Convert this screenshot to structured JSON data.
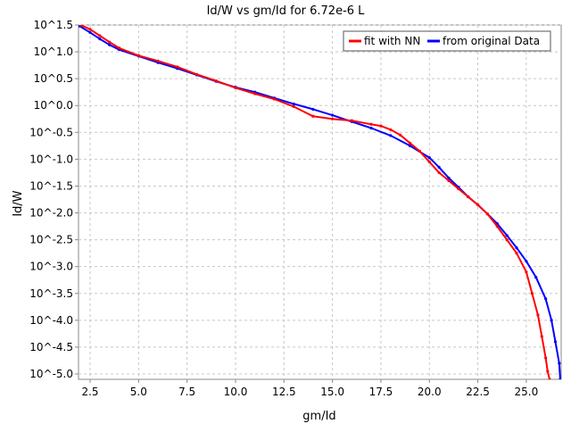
{
  "chart_data": {
    "type": "line",
    "title": "Id/W vs gm/Id for 6.72e-6 L",
    "xlabel": "gm/Id",
    "ylabel": "Id/W",
    "xlim": [
      1.9,
      26.8
    ],
    "ylim": [
      -5.1,
      1.5
    ],
    "y_scale": "log10 (exponent shown)",
    "grid": true,
    "legend_position": "top-right",
    "x_ticks": [
      2.5,
      5.0,
      7.5,
      10.0,
      12.5,
      15.0,
      17.5,
      20.0,
      22.5,
      25.0
    ],
    "x_tick_labels": [
      "2.5",
      "5.0",
      "7.5",
      "10.0",
      "12.5",
      "15.0",
      "17.5",
      "20.0",
      "22.5",
      "25.0"
    ],
    "y_ticks": [
      1.5,
      1.0,
      0.5,
      0.0,
      -0.5,
      -1.0,
      -1.5,
      -2.0,
      -2.5,
      -3.0,
      -3.5,
      -4.0,
      -4.5,
      -5.0
    ],
    "y_tick_labels": [
      "10^1.5",
      "10^1.0",
      "10^0.5",
      "10^0.0",
      "10^-0.5",
      "10^-1.0",
      "10^-1.5",
      "10^-2.0",
      "10^-2.5",
      "10^-3.0",
      "10^-3.5",
      "10^-4.0",
      "10^-4.5",
      "10^-5.0"
    ],
    "series": [
      {
        "name": "fit with NN",
        "color": "#ff0000",
        "x": [
          2.0,
          2.5,
          3.0,
          3.5,
          4.0,
          5.0,
          6.0,
          7.0,
          8.0,
          9.0,
          10.0,
          11.0,
          12.0,
          13.0,
          14.0,
          15.0,
          16.0,
          17.0,
          17.5,
          18.0,
          18.5,
          19.0,
          19.5,
          20.0,
          20.5,
          21.0,
          21.5,
          22.0,
          22.5,
          23.0,
          23.5,
          24.0,
          24.5,
          25.0,
          25.3,
          25.6,
          25.8,
          26.0,
          26.1,
          26.2
        ],
        "y": [
          1.5,
          1.42,
          1.3,
          1.18,
          1.07,
          0.93,
          0.83,
          0.72,
          0.58,
          0.46,
          0.33,
          0.22,
          0.12,
          -0.02,
          -0.2,
          -0.25,
          -0.28,
          -0.35,
          -0.38,
          -0.45,
          -0.55,
          -0.7,
          -0.85,
          -1.05,
          -1.25,
          -1.4,
          -1.55,
          -1.7,
          -1.85,
          -2.02,
          -2.25,
          -2.5,
          -2.75,
          -3.1,
          -3.5,
          -3.9,
          -4.3,
          -4.7,
          -4.95,
          -5.1
        ]
      },
      {
        "name": "from original Data",
        "color": "#0000ff",
        "x": [
          1.95,
          2.5,
          3.0,
          3.5,
          4.0,
          5.0,
          6.0,
          7.0,
          8.0,
          9.0,
          10.0,
          11.0,
          12.0,
          13.0,
          14.0,
          15.0,
          16.0,
          17.0,
          18.0,
          19.0,
          20.0,
          20.5,
          21.0,
          21.5,
          22.0,
          22.5,
          23.0,
          23.5,
          24.0,
          24.5,
          25.0,
          25.5,
          26.0,
          26.3,
          26.5,
          26.7,
          26.75
        ],
        "y": [
          1.48,
          1.36,
          1.24,
          1.13,
          1.04,
          0.92,
          0.8,
          0.69,
          0.57,
          0.45,
          0.34,
          0.25,
          0.14,
          0.03,
          -0.07,
          -0.18,
          -0.3,
          -0.42,
          -0.56,
          -0.75,
          -0.97,
          -1.15,
          -1.35,
          -1.52,
          -1.7,
          -1.85,
          -2.02,
          -2.2,
          -2.42,
          -2.65,
          -2.9,
          -3.2,
          -3.6,
          -4.0,
          -4.4,
          -4.8,
          -5.1
        ]
      }
    ]
  }
}
